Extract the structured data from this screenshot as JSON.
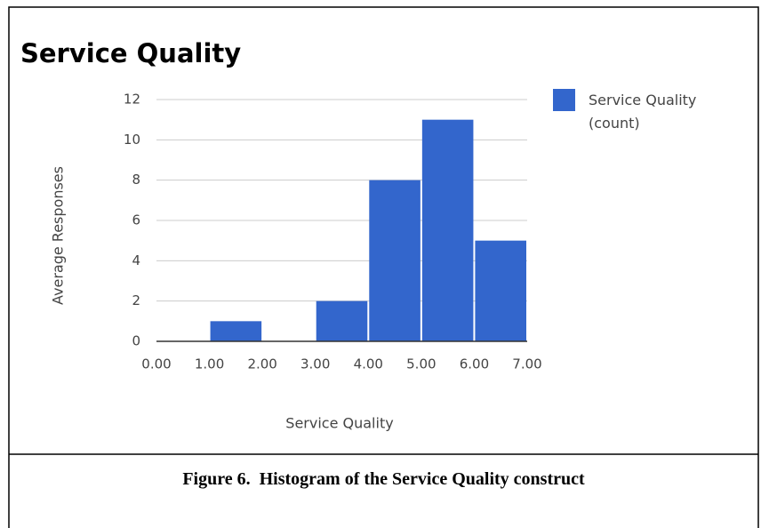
{
  "chart_data": {
    "type": "histogram",
    "title": "Service Quality",
    "xlabel": "Service Quality",
    "ylabel": "Average Responses",
    "bins": [
      0,
      1,
      2,
      3,
      4,
      5,
      6,
      7
    ],
    "series": [
      {
        "name": "Service Quality (count)",
        "color": "#3366cc",
        "values": [
          0,
          1,
          0,
          2,
          8,
          11,
          5
        ]
      }
    ],
    "xlim": [
      0,
      7
    ],
    "xticks": [
      {
        "value": 0,
        "label": "0.00"
      },
      {
        "value": 1,
        "label": "1.00"
      },
      {
        "value": 2,
        "label": "2.00"
      },
      {
        "value": 3,
        "label": "3.00"
      },
      {
        "value": 4,
        "label": "4.00"
      },
      {
        "value": 5,
        "label": "5.00"
      },
      {
        "value": 6,
        "label": "6.00"
      },
      {
        "value": 7,
        "label": "7.00"
      }
    ],
    "ylim": [
      0,
      12
    ],
    "yticks": [
      0,
      2,
      4,
      6,
      8,
      10,
      12
    ],
    "grid": true,
    "legend": "right"
  },
  "caption": "Figure 6.  Histogram of the Service Quality construct"
}
